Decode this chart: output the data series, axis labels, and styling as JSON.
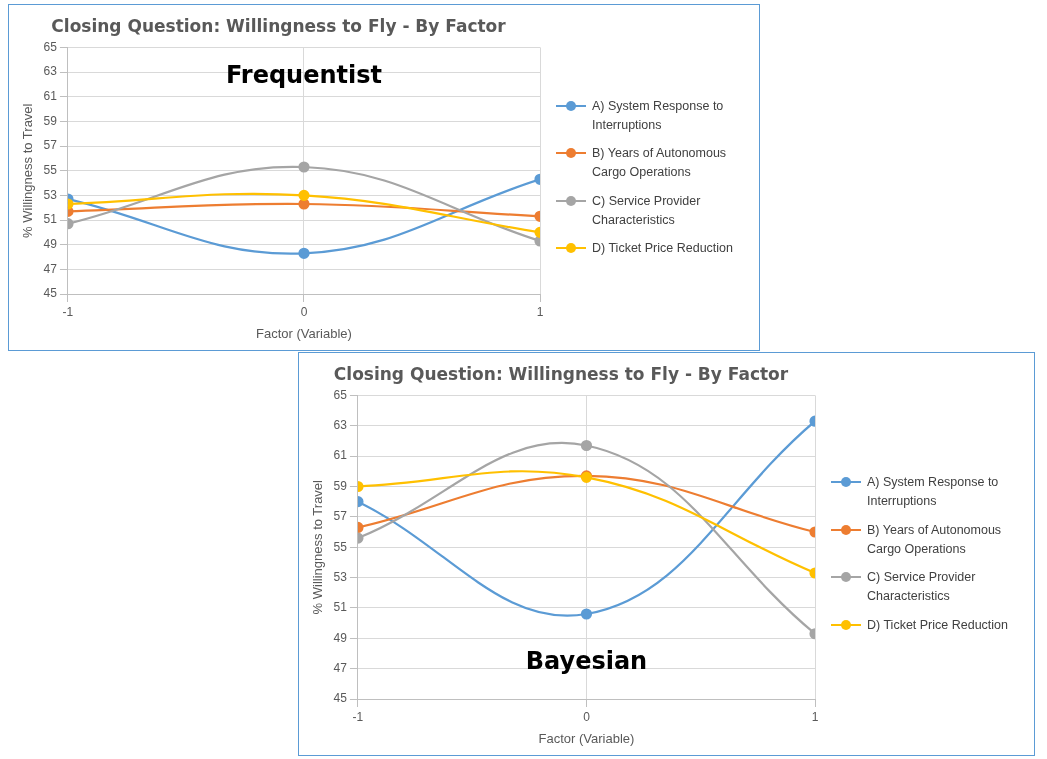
{
  "chart_data": [
    {
      "type": "line",
      "title": "Closing Question: Willingness to Fly - By Factor",
      "xlabel": "Factor (Variable)",
      "ylabel": "% Willingness to Travel",
      "annotations": [
        "Frequentist"
      ],
      "x": [
        -1,
        0,
        1
      ],
      "xlim": [
        -1,
        1
      ],
      "xticks": [
        -1,
        0,
        1
      ],
      "ylim": [
        45,
        65
      ],
      "yticks": [
        45,
        47,
        49,
        51,
        53,
        55,
        57,
        59,
        61,
        63,
        65
      ],
      "grid": true,
      "legend": "right",
      "marker": "circle",
      "line_style": "solid",
      "series": [
        {
          "name": "A) System Response to Interruptions",
          "color": "#5b9bd5",
          "values": [
            52.7,
            48.3,
            54.3
          ]
        },
        {
          "name": "B) Years of Autonomous Cargo Operations",
          "color": "#ed7d31",
          "values": [
            51.7,
            52.3,
            51.3
          ]
        },
        {
          "name": "C) Service Provider Characteristics",
          "color": "#a5a5a5",
          "values": [
            50.7,
            55.3,
            49.3
          ]
        },
        {
          "name": "D) Ticket Price Reduction",
          "color": "#ffc000",
          "values": [
            52.3,
            53.0,
            50.0
          ]
        }
      ]
    },
    {
      "type": "line",
      "title": "Closing Question: Willingness to Fly - By Factor",
      "xlabel": "Factor (Variable)",
      "ylabel": "% Willingness to Travel",
      "annotations": [
        "Bayesian"
      ],
      "x": [
        -1,
        0,
        1
      ],
      "xlim": [
        -1,
        1
      ],
      "xticks": [
        -1,
        0,
        1
      ],
      "ylim": [
        45,
        65
      ],
      "yticks": [
        45,
        47,
        49,
        51,
        53,
        55,
        57,
        59,
        61,
        63,
        65
      ],
      "grid": true,
      "legend": "right",
      "marker": "circle",
      "line_style": "solid",
      "series": [
        {
          "name": "A) System Response to Interruptions",
          "color": "#5b9bd5",
          "values": [
            58.0,
            50.6,
            63.3
          ]
        },
        {
          "name": "B) Years of Autonomous Cargo Operations",
          "color": "#ed7d31",
          "values": [
            56.3,
            59.7,
            56.0
          ]
        },
        {
          "name": "C) Service Provider Characteristics",
          "color": "#a5a5a5",
          "values": [
            55.6,
            61.7,
            49.3
          ]
        },
        {
          "name": "D) Ticket Price Reduction",
          "color": "#ffc000",
          "values": [
            59.0,
            59.6,
            53.3
          ]
        }
      ]
    }
  ]
}
